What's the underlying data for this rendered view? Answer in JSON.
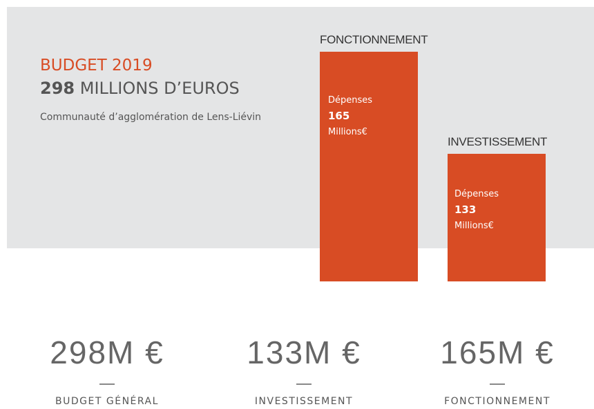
{
  "header": {
    "title": "BUDGET 2019",
    "total": "298",
    "total_unit": "MILLIONS D’EUROS",
    "subtitle": "Communauté d’agglomération de Lens-Liévin"
  },
  "bars": [
    {
      "title": "FONCTIONNEMENT",
      "label": "Dépenses",
      "value": 165,
      "unit": "Millions€"
    },
    {
      "title": "INVESTISSEMENT",
      "label": "Dépenses",
      "value": 133,
      "unit": "Millions€"
    }
  ],
  "stats": [
    {
      "value": "298M €",
      "label": "BUDGET GÉNÉRAL"
    },
    {
      "value": "133M €",
      "label": "INVESTISSEMENT"
    },
    {
      "value": "165M €",
      "label": "FONCTIONNEMENT"
    }
  ]
}
